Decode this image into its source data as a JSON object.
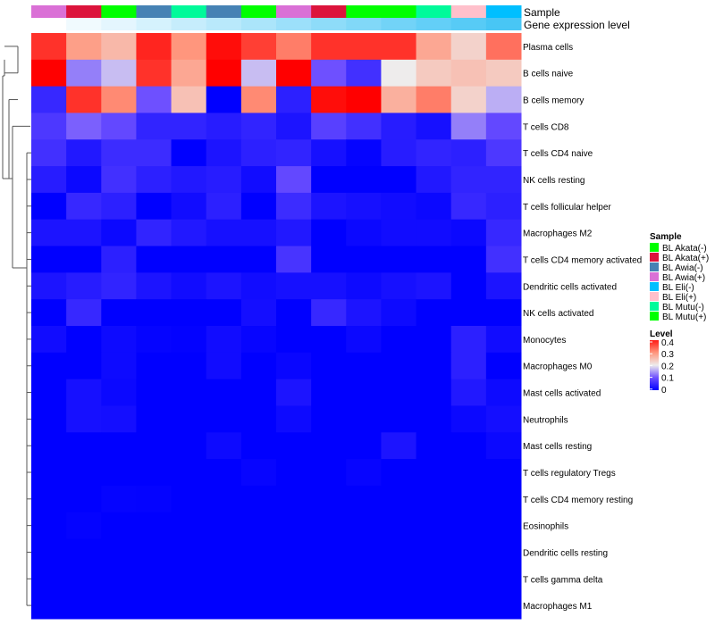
{
  "chart_data": {
    "type": "heatmap",
    "annotation_labels": {
      "sample": "Sample",
      "gene": "Gene expression level"
    },
    "sample_colors_per_column": [
      "#DA70D6",
      "#DC143C",
      "#00FF00",
      "#4682B4",
      "#00FA9A",
      "#4682B4",
      "#00FF00",
      "#DA70D6",
      "#DC143C",
      "#00FF00",
      "#00FF00",
      "#00FA9A",
      "#FFC0CB",
      "#00BFFF"
    ],
    "gene_expression_per_column": [
      0,
      0.08,
      0.15,
      0.23,
      0.31,
      0.38,
      0.46,
      0.54,
      0.62,
      0.69,
      0.77,
      0.85,
      0.92,
      1
    ],
    "rows": [
      "Plasma cells",
      "B cells naive",
      "B cells memory",
      "T cells CD8",
      "T cells CD4 naive",
      "NK cells resting",
      "T cells follicular helper",
      "Macrophages M2",
      "T cells CD4 memory activated",
      "Dendritic cells activated",
      "NK cells activated",
      "Monocytes",
      "Macrophages M0",
      "Mast cells activated",
      "Neutrophils",
      "Mast cells resting",
      "T cells regulatory  Tregs",
      "T cells CD4 memory resting",
      "Eosinophils",
      "Dendritic cells resting",
      "T cells gamma delta",
      "Macrophages M1"
    ],
    "values": [
      [
        0.38,
        0.29,
        0.26,
        0.39,
        0.3,
        0.41,
        0.37,
        0.32,
        0.38,
        0.38,
        0.38,
        0.28,
        0.23,
        0.33
      ],
      [
        0.42,
        0.13,
        0.17,
        0.38,
        0.28,
        0.42,
        0.17,
        0.42,
        0.1,
        0.06,
        0.2,
        0.24,
        0.25,
        0.24
      ],
      [
        0.05,
        0.38,
        0.31,
        0.1,
        0.25,
        0.0,
        0.31,
        0.04,
        0.41,
        0.42,
        0.27,
        0.32,
        0.23,
        0.16
      ],
      [
        0.07,
        0.11,
        0.09,
        0.045,
        0.045,
        0.035,
        0.045,
        0.025,
        0.08,
        0.06,
        0.035,
        0.02,
        0.13,
        0.09
      ],
      [
        0.06,
        0.03,
        0.055,
        0.055,
        0.0,
        0.025,
        0.04,
        0.045,
        0.02,
        0.005,
        0.035,
        0.045,
        0.04,
        0.07
      ],
      [
        0.035,
        0.01,
        0.06,
        0.04,
        0.03,
        0.035,
        0.015,
        0.09,
        0,
        0,
        0,
        0.03,
        0.045,
        0.045
      ],
      [
        0,
        0.05,
        0.04,
        0,
        0.015,
        0.04,
        0,
        0.055,
        0.025,
        0.02,
        0.015,
        0.01,
        0.05,
        0.04
      ],
      [
        0.025,
        0.025,
        0.01,
        0.045,
        0.03,
        0.02,
        0.02,
        0.03,
        0,
        0.01,
        0.015,
        0.015,
        0.01,
        0.05
      ],
      [
        0,
        0,
        0.04,
        0,
        0,
        0,
        0,
        0.065,
        0,
        0,
        0,
        0,
        0,
        0.06
      ],
      [
        0.025,
        0.035,
        0.045,
        0.025,
        0.015,
        0.025,
        0.015,
        0.02,
        0.02,
        0.012,
        0.02,
        0.025,
        0,
        0.025
      ],
      [
        0,
        0.05,
        0,
        0,
        0,
        0,
        0.018,
        0,
        0.05,
        0.025,
        0.012,
        0,
        0,
        0
      ],
      [
        0.015,
        0,
        0.012,
        0.005,
        0.003,
        0.015,
        0.006,
        0,
        0,
        0.01,
        0,
        0,
        0.04,
        0.015
      ],
      [
        0,
        0,
        0.012,
        0,
        0,
        0.015,
        0,
        0.008,
        0,
        0,
        0,
        0,
        0.04,
        0
      ],
      [
        0,
        0.02,
        0.01,
        0,
        0,
        0,
        0,
        0.025,
        0,
        0,
        0,
        0,
        0.03,
        0.012
      ],
      [
        0,
        0.02,
        0.018,
        0,
        0,
        0,
        0,
        0.012,
        0,
        0,
        0,
        0,
        0.01,
        0.018
      ],
      [
        0,
        0,
        0,
        0,
        0,
        0.012,
        0,
        0,
        0,
        0,
        0.025,
        0,
        0,
        0.01
      ],
      [
        0,
        0,
        0,
        0,
        0,
        0,
        0.006,
        0,
        0,
        0.006,
        0,
        0,
        0,
        0
      ],
      [
        0,
        0,
        0.005,
        0.004,
        0,
        0,
        0,
        0,
        0,
        0,
        0,
        0,
        0,
        0
      ],
      [
        0,
        0.004,
        0,
        0,
        0,
        0,
        0,
        0,
        0,
        0,
        0,
        0,
        0,
        0
      ],
      [
        0,
        0,
        0,
        0,
        0,
        0,
        0,
        0,
        0,
        0,
        0,
        0,
        0,
        0
      ],
      [
        0,
        0,
        0,
        0,
        0,
        0,
        0,
        0,
        0,
        0,
        0,
        0,
        0,
        0
      ],
      [
        0,
        0,
        0,
        0,
        0,
        0,
        0,
        0,
        0,
        0,
        0,
        0,
        0,
        0
      ]
    ],
    "legend_sample": {
      "title": "Sample",
      "items": [
        {
          "label": "BL Akata(-)",
          "color": "#00FF00"
        },
        {
          "label": "BL Akata(+)",
          "color": "#DC143C"
        },
        {
          "label": "BL Awia(-)",
          "color": "#4682B4"
        },
        {
          "label": "BL Awia(+)",
          "color": "#DA70D6"
        },
        {
          "label": "BL Eli(-)",
          "color": "#00BFFF"
        },
        {
          "label": "BL Eli(+)",
          "color": "#FFC0CB"
        },
        {
          "label": "BL Mutu(-)",
          "color": "#00FA9A"
        },
        {
          "label": "BL Mutu(+)",
          "color": "#00FF00"
        }
      ]
    },
    "legend_level": {
      "title": "Level",
      "ticks": [
        "0.4",
        "0.3",
        "0.2",
        "0.1",
        "0"
      ],
      "range": [
        0,
        0.4
      ]
    },
    "legend_position": "right"
  }
}
